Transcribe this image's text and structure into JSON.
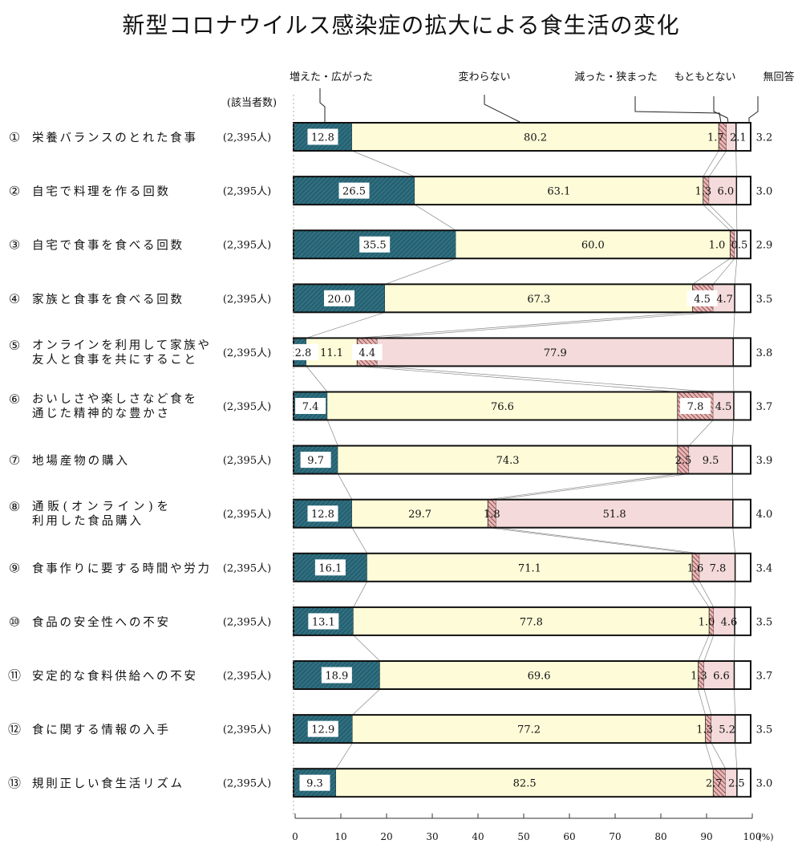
{
  "chart_data": {
    "type": "bar",
    "orientation": "horizontal",
    "stacked": true,
    "title": "新型コロナウイルス感染症の拡大による食生活の変化",
    "respondents_header": "(該当者数)",
    "unit_label": "(%)",
    "xlim": [
      0,
      100
    ],
    "x_ticks": [
      0,
      10,
      20,
      30,
      40,
      50,
      60,
      70,
      80,
      90,
      100
    ],
    "series": [
      {
        "name": "増えた・広がった",
        "color": "#2e6f80"
      },
      {
        "name": "変わらない",
        "color": "#fefcd8"
      },
      {
        "name": "減った・狭まった",
        "color": "#b67073"
      },
      {
        "name": "もともとない",
        "color": "#f4dada"
      },
      {
        "name": "無回答",
        "color": "#ffffff"
      }
    ],
    "categories": [
      {
        "num": "①",
        "label": [
          "栄養バランスのとれた食事"
        ],
        "n": "(2,395人)",
        "values": [
          12.8,
          80.2,
          1.7,
          2.1,
          3.2
        ]
      },
      {
        "num": "②",
        "label": [
          "自宅で料理を作る回数"
        ],
        "n": "(2,395人)",
        "values": [
          26.5,
          63.1,
          1.3,
          6.0,
          3.0
        ]
      },
      {
        "num": "③",
        "label": [
          "自宅で食事を食べる回数"
        ],
        "n": "(2,395人)",
        "values": [
          35.5,
          60.0,
          1.0,
          0.5,
          2.9
        ]
      },
      {
        "num": "④",
        "label": [
          "家族と食事を食べる回数"
        ],
        "n": "(2,395人)",
        "values": [
          20.0,
          67.3,
          4.5,
          4.7,
          3.5
        ]
      },
      {
        "num": "⑤",
        "label": [
          "オンラインを利用して家族や",
          "友人と食事を共にすること"
        ],
        "n": "(2,395人)",
        "values": [
          2.8,
          11.1,
          4.4,
          77.9,
          3.8
        ]
      },
      {
        "num": "⑥",
        "label": [
          "おいしさや楽しさなど食を",
          "通じた精神的な豊かさ"
        ],
        "n": "(2,395人)",
        "values": [
          7.4,
          76.6,
          7.8,
          4.5,
          3.7
        ]
      },
      {
        "num": "⑦",
        "label": [
          "地場産物の購入"
        ],
        "n": "(2,395人)",
        "values": [
          9.7,
          74.3,
          2.5,
          9.5,
          3.9
        ]
      },
      {
        "num": "⑧",
        "label": [
          "通販(オンライン)を",
          "利用した食品購入"
        ],
        "n": "(2,395人)",
        "values": [
          12.8,
          29.7,
          1.8,
          51.8,
          4.0
        ]
      },
      {
        "num": "⑨",
        "label": [
          "食事作りに要する時間や労力"
        ],
        "n": "(2,395人)",
        "values": [
          16.1,
          71.1,
          1.6,
          7.8,
          3.4
        ]
      },
      {
        "num": "⑩",
        "label": [
          "食品の安全性への不安"
        ],
        "n": "(2,395人)",
        "values": [
          13.1,
          77.8,
          1.0,
          4.6,
          3.5
        ]
      },
      {
        "num": "⑪",
        "label": [
          "安定的な食料供給への不安"
        ],
        "n": "(2,395人)",
        "values": [
          18.9,
          69.6,
          1.3,
          6.6,
          3.7
        ]
      },
      {
        "num": "⑫",
        "label": [
          "食に関する情報の入手"
        ],
        "n": "(2,395人)",
        "values": [
          12.9,
          77.2,
          1.3,
          5.2,
          3.5
        ]
      },
      {
        "num": "⑬",
        "label": [
          "規則正しい食生活リズム"
        ],
        "n": "(2,395人)",
        "values": [
          9.3,
          82.5,
          2.7,
          2.5,
          3.0
        ]
      }
    ]
  }
}
